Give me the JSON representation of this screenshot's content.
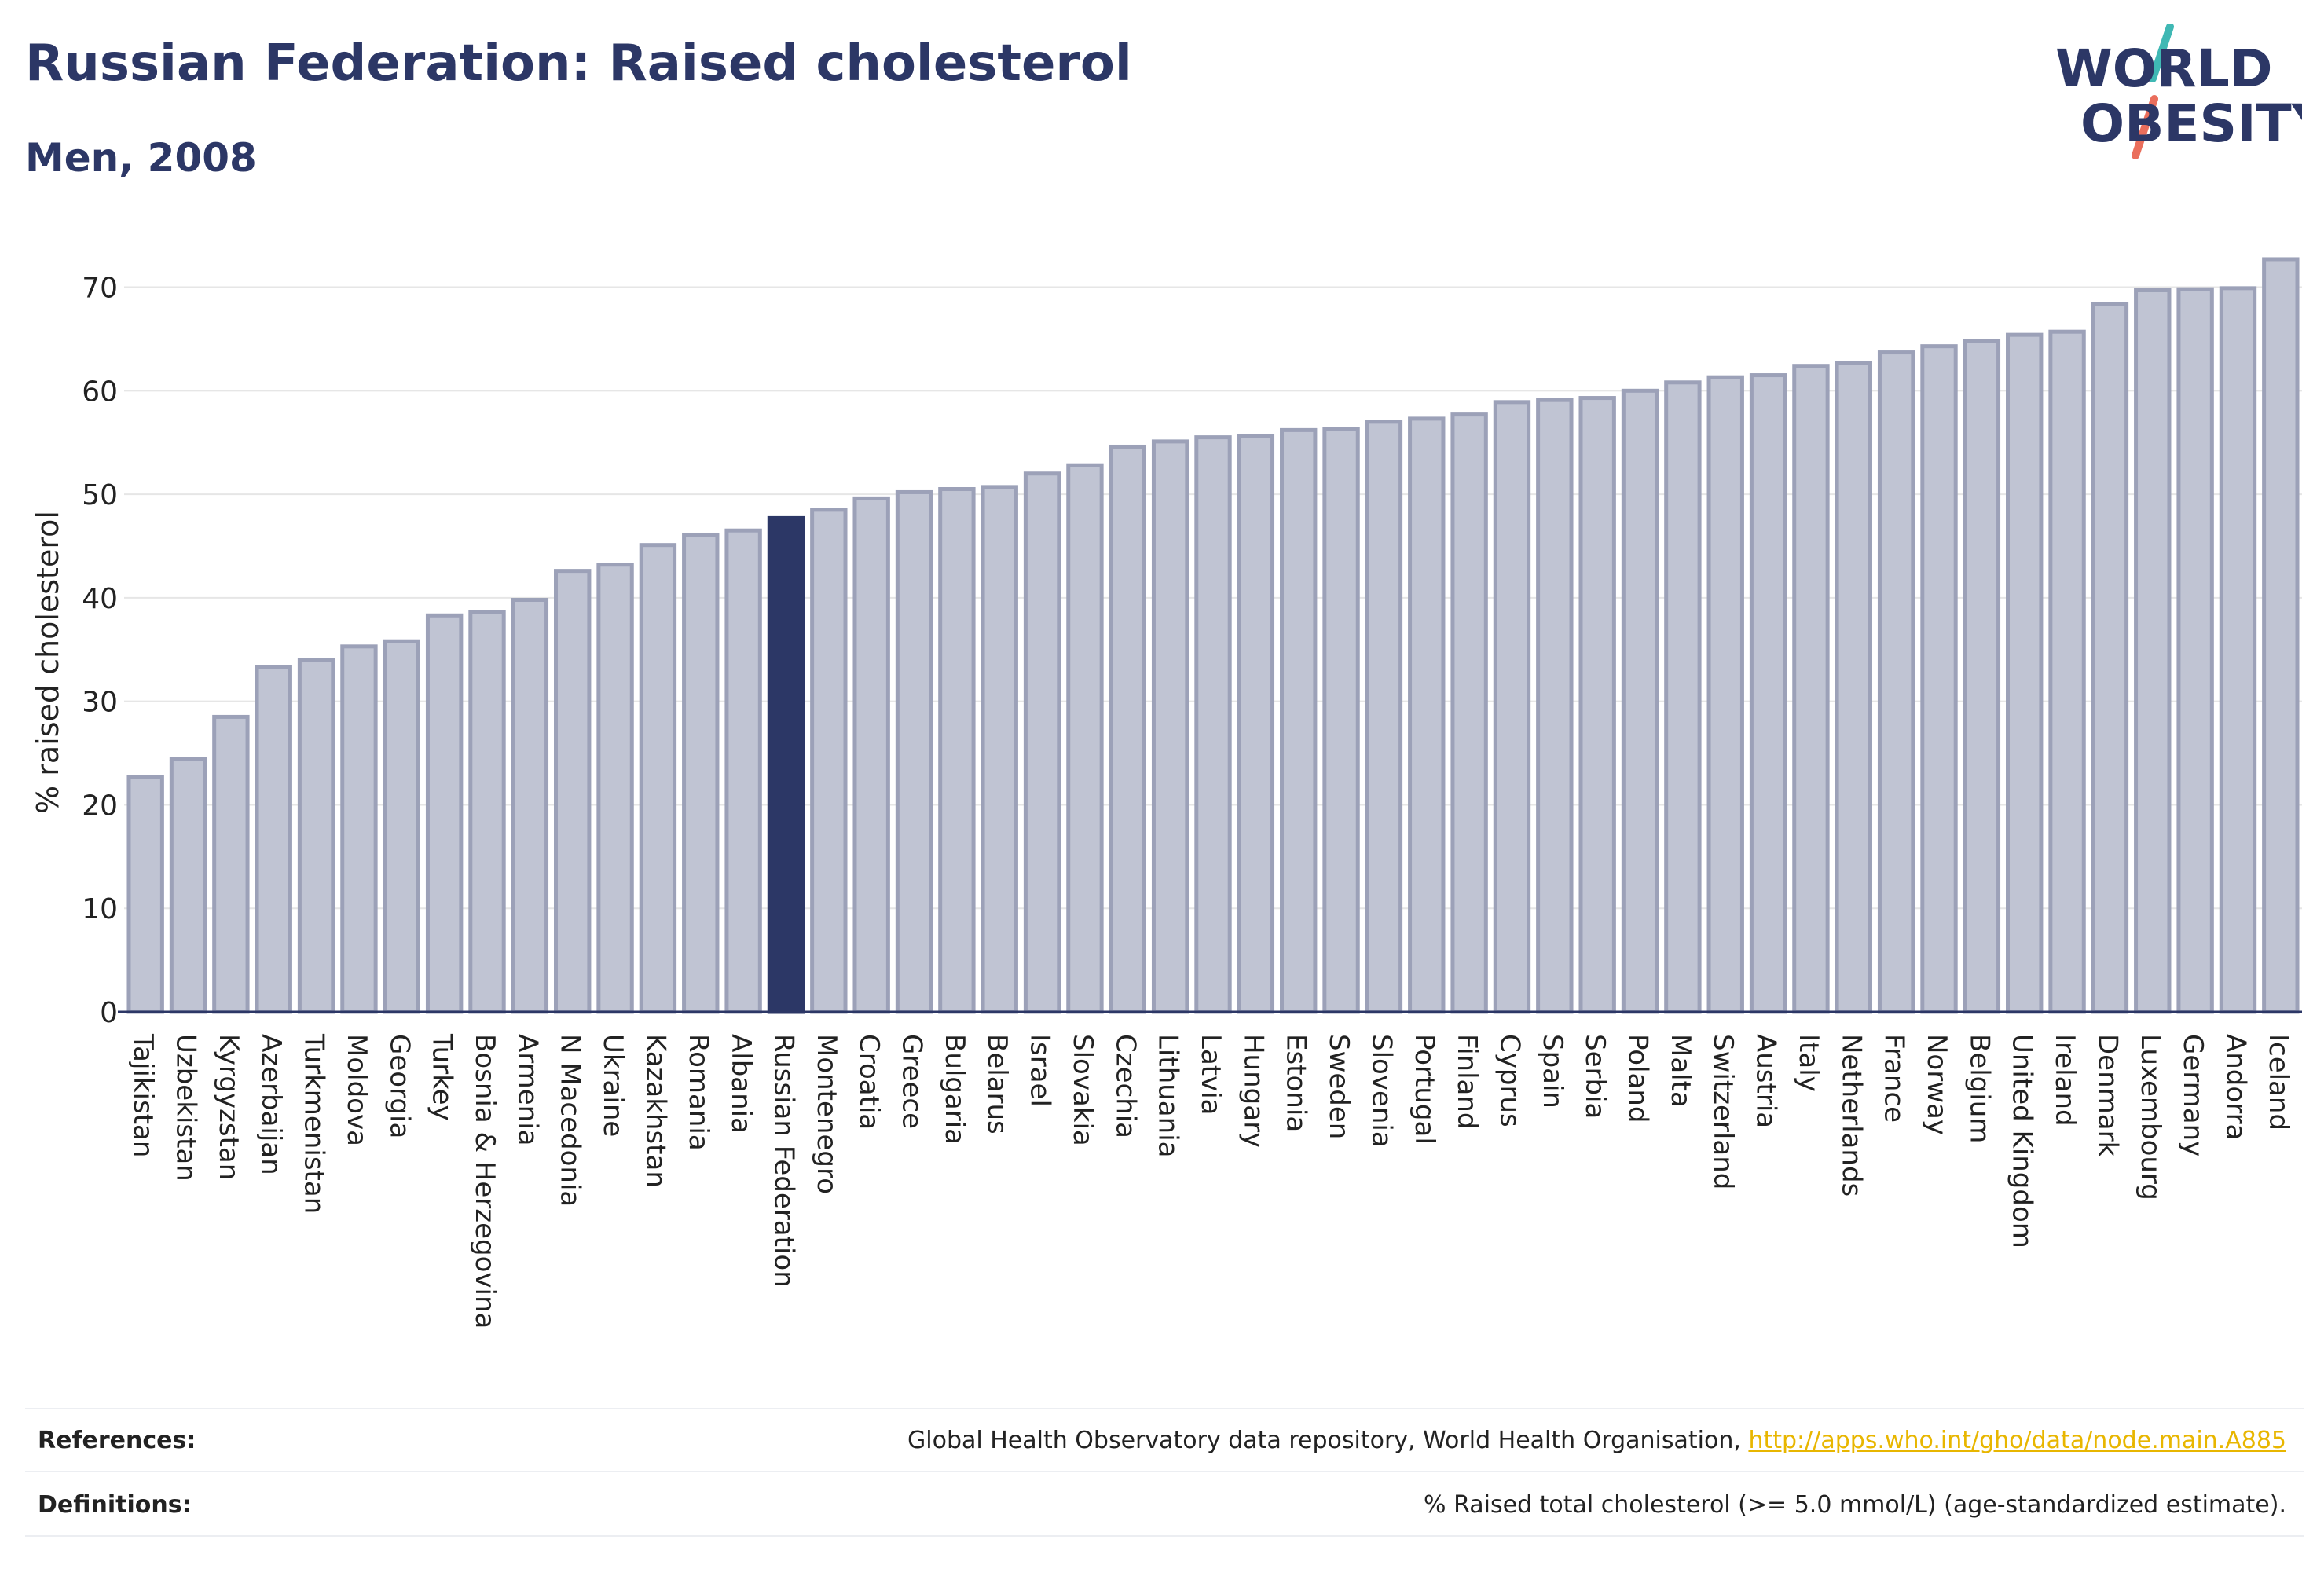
{
  "header": {
    "title": "Russian Federation: Raised cholesterol",
    "subtitle": "Men, 2008"
  },
  "logo": {
    "line1": "WORLD",
    "line2": "OBESITY"
  },
  "chart_data": {
    "type": "bar",
    "title": "Russian Federation: Raised cholesterol",
    "subtitle": "Men, 2008",
    "xlabel": "",
    "ylabel": "% raised cholesterol",
    "ylim": [
      0,
      73
    ],
    "yticks": [
      0,
      10,
      20,
      30,
      40,
      50,
      60,
      70
    ],
    "grid": true,
    "highlight": "Russian Federation",
    "colors": {
      "bar": "#c0c4d3",
      "bar_edge": "#9ca1b8",
      "highlight": "#2c3766",
      "grid": "#e6e6e6",
      "axis": "#2c3766"
    },
    "categories": [
      "Tajikistan",
      "Uzbekistan",
      "Kyrgyzstan",
      "Azerbaijan",
      "Turkmenistan",
      "Moldova",
      "Georgia",
      "Turkey",
      "Bosnia & Herzegovina",
      "Armenia",
      "N Macedonia",
      "Ukraine",
      "Kazakhstan",
      "Romania",
      "Albania",
      "Russian Federation",
      "Montenegro",
      "Croatia",
      "Greece",
      "Bulgaria",
      "Belarus",
      "Israel",
      "Slovakia",
      "Czechia",
      "Lithuania",
      "Latvia",
      "Hungary",
      "Estonia",
      "Sweden",
      "Slovenia",
      "Portugal",
      "Finland",
      "Cyprus",
      "Spain",
      "Serbia",
      "Poland",
      "Malta",
      "Switzerland",
      "Austria",
      "Italy",
      "Netherlands",
      "France",
      "Norway",
      "Belgium",
      "United Kingdom",
      "Ireland",
      "Denmark",
      "Luxembourg",
      "Germany",
      "Andorra",
      "Iceland"
    ],
    "values": [
      22.7,
      24.4,
      28.5,
      33.3,
      34.0,
      35.3,
      35.8,
      38.3,
      38.6,
      39.8,
      42.6,
      43.2,
      45.1,
      46.1,
      46.5,
      47.7,
      48.5,
      49.6,
      50.2,
      50.5,
      50.7,
      52.0,
      52.8,
      54.6,
      55.1,
      55.5,
      55.6,
      56.2,
      56.3,
      57.0,
      57.3,
      57.7,
      58.9,
      59.1,
      59.3,
      60.0,
      60.8,
      61.3,
      61.5,
      62.4,
      62.7,
      63.7,
      64.3,
      64.8,
      65.4,
      65.7,
      68.4,
      69.7,
      69.8,
      69.9,
      72.7
    ]
  },
  "footer": {
    "references_label": "References:",
    "references_text": "Global Health Observatory data repository, World Health Organisation, ",
    "references_link": "http://apps.who.int/gho/data/node.main.A885",
    "definitions_label": "Definitions:",
    "definitions_text": "% Raised total cholesterol (>= 5.0 mmol/L) (age-standardized estimate)."
  }
}
